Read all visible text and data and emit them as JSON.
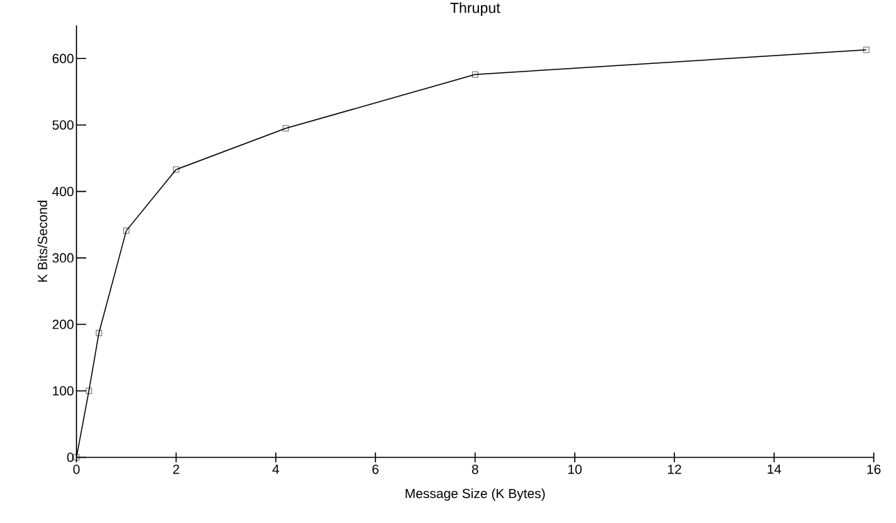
{
  "chart_data": {
    "type": "line",
    "title": "Thruput",
    "xlabel": "Message Size (K Bytes)",
    "ylabel": "K Bits/Second",
    "x": [
      0,
      0.25,
      0.45,
      1,
      2,
      4.2,
      8,
      15.85
    ],
    "series": [
      {
        "color": "#000000",
        "values": [
          0,
          100,
          187,
          341,
          433,
          495,
          576,
          613
        ]
      }
    ],
    "xlim": [
      0,
      16
    ],
    "ylim": [
      0,
      650
    ],
    "xticks": [
      0,
      2,
      4,
      6,
      8,
      10,
      12,
      14,
      16
    ],
    "yticks": [
      0,
      100,
      200,
      300,
      400,
      500,
      600
    ],
    "marker": "square",
    "line_style": "solid"
  }
}
